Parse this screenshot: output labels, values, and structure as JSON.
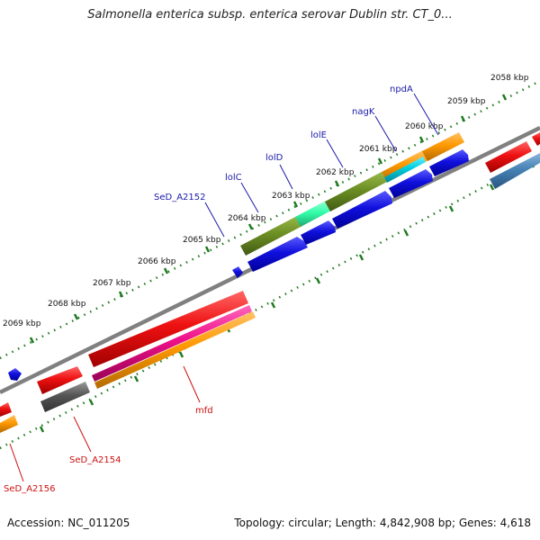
{
  "title": "Salmonella enterica subsp. enterica serovar Dublin str. CT_0...",
  "footer": {
    "accession": "Accession: NC_011205",
    "summary": "Topology: circular; Length: 4,842,908 bp; Genes: 4,618"
  },
  "ticks": [
    "2058 kbp",
    "2059 kbp",
    "2060 kbp",
    "2061 kbp",
    "2062 kbp",
    "2063 kbp",
    "2064 kbp",
    "2065 kbp",
    "2066 kbp",
    "2067 kbp",
    "2068 kbp",
    "2069 kbp"
  ],
  "gene_labels_forward": [
    "npdA",
    "nagK",
    "lolE",
    "lolD",
    "lolC",
    "SeD_A2152"
  ],
  "gene_labels_reverse": [
    "mfd",
    "SeD_A2154",
    "SeD_A2156"
  ],
  "colors": {
    "forward_label": "#1a1aaa",
    "reverse_label": "#cc1111",
    "backbone": "#808080",
    "tick": "#1f7a1f",
    "cds_blue": "#1010dd",
    "cds_red": "#ee1111",
    "olive": "#6b8e23",
    "aquamarine": "#33ffaa",
    "orange": "#ff9900",
    "cyan": "#00ccdd",
    "magenta": "#ee1188",
    "gray": "#555555",
    "steelblue": "#4682b4"
  }
}
